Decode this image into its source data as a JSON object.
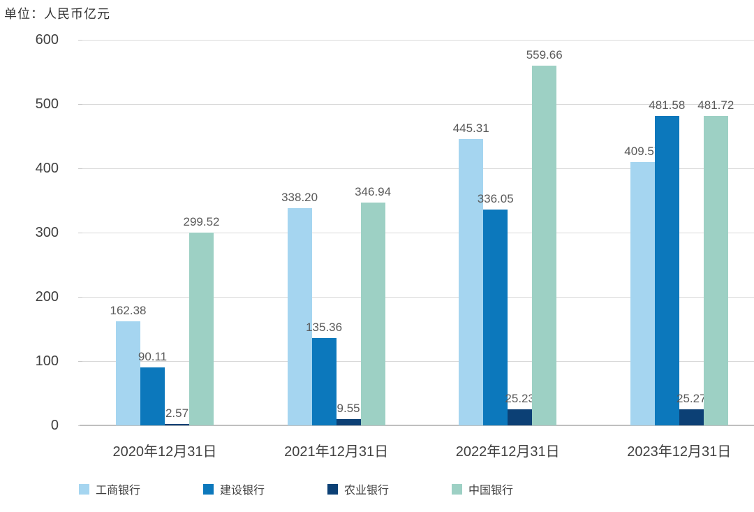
{
  "unit_label": "单位：人民币亿元",
  "colors": {
    "gridline": "#d9d9d9",
    "axis_line": "#bfbfbf",
    "value_label": "#595959",
    "tick_label": "#404040",
    "background": "#ffffff"
  },
  "chart_data": {
    "type": "bar",
    "title": "单位：人民币亿元",
    "xlabel": "",
    "ylabel": "",
    "ylim": [
      0,
      600
    ],
    "y_ticks": [
      0,
      100,
      200,
      300,
      400,
      500,
      600
    ],
    "grid": true,
    "legend_position": "bottom",
    "categories": [
      "2020年12月31日",
      "2021年12月31日",
      "2022年12月31日",
      "2023年12月31日"
    ],
    "series": [
      {
        "name": "工商银行",
        "color": "#a5d5f0",
        "values": [
          162.38,
          338.2,
          445.31,
          409.57
        ],
        "labels": [
          "162.38",
          "338.20",
          "445.31",
          "409.57"
        ]
      },
      {
        "name": "建设银行",
        "color": "#0c78bc",
        "values": [
          90.11,
          135.36,
          336.05,
          481.58
        ],
        "labels": [
          "90.11",
          "135.36",
          "336.05",
          "481.58"
        ]
      },
      {
        "name": "农业银行",
        "color": "#0c4075",
        "values": [
          2.57,
          9.55,
          25.23,
          25.27
        ],
        "labels": [
          "2.57",
          "9.55",
          "25.23",
          "25.27"
        ]
      },
      {
        "name": "中国银行",
        "color": "#9dd0c4",
        "values": [
          299.52,
          346.94,
          559.66,
          481.72
        ],
        "labels": [
          "299.52",
          "346.94",
          "559.66",
          "481.72"
        ]
      }
    ]
  }
}
